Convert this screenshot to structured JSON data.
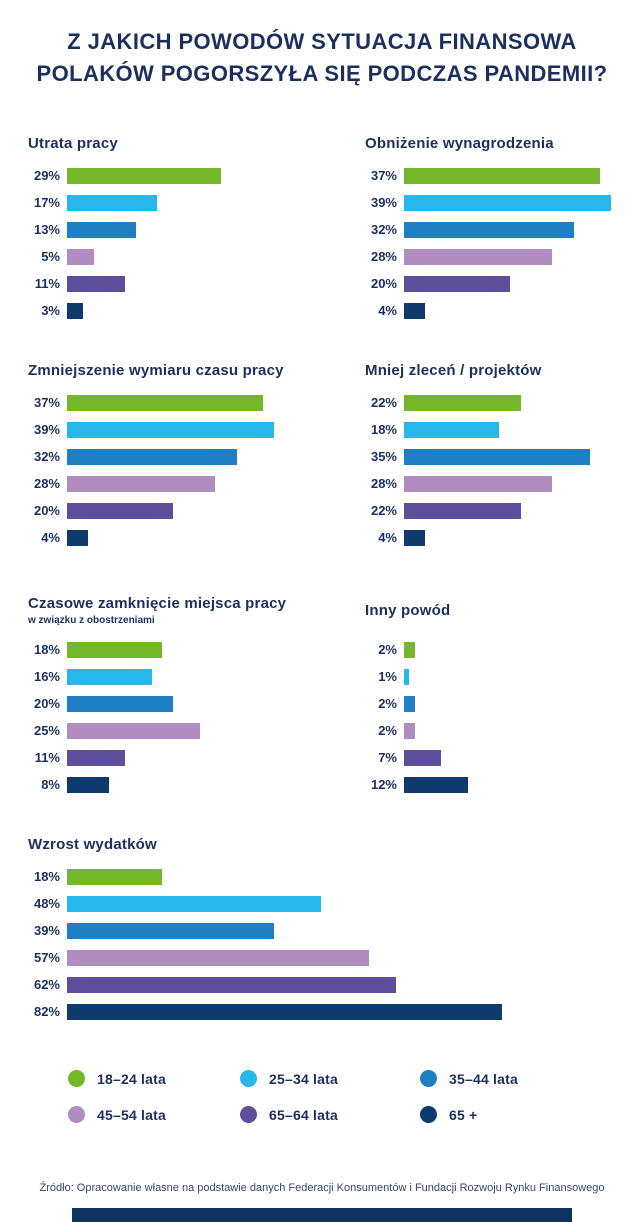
{
  "title": "Z JAKICH POWODÓW SYTUACJA FINANSOWA\nPOLAKÓW POGORSZYŁA SIĘ PODCZAS PANDEMII?",
  "colors": {
    "title": "#1d2f5e",
    "footer_strip": "#0d335f"
  },
  "legend": [
    {
      "label": "18–24 lata",
      "color": "#74b829"
    },
    {
      "label": "25–34 lata",
      "color": "#27b7ea"
    },
    {
      "label": "35–44 lata",
      "color": "#1e7fc2"
    },
    {
      "label": "45–54 lata",
      "color": "#b08cc1"
    },
    {
      "label": "65–64 lata",
      "color": "#5d4f9c"
    },
    {
      "label": "65 +",
      "color": "#0e3a6d"
    }
  ],
  "chart_layout": {
    "orientation": "horizontal",
    "grid": false,
    "legend_position": "bottom",
    "value_labels": "left",
    "unit": "%"
  },
  "chart_data": [
    {
      "type": "bar",
      "id": "utrata-pracy",
      "title": "Utrata pracy",
      "subtitle": "",
      "categories": [
        "18–24 lata",
        "25–34 lata",
        "35–44 lata",
        "45–54 lata",
        "65–64 lata",
        "65 +"
      ],
      "values": [
        29,
        17,
        13,
        5,
        11,
        3
      ],
      "unit": "%"
    },
    {
      "type": "bar",
      "id": "obnizenie-wynagrodzenia",
      "title": "Obniżenie wynagrodzenia",
      "subtitle": "",
      "categories": [
        "18–24 lata",
        "25–34 lata",
        "35–44 lata",
        "45–54 lata",
        "65–64 lata",
        "65 +"
      ],
      "values": [
        37,
        39,
        32,
        28,
        20,
        4
      ],
      "unit": "%"
    },
    {
      "type": "bar",
      "id": "zmniejszenie-wymiaru-czasu-pracy",
      "title": "Zmniejszenie wymiaru czasu pracy",
      "subtitle": "",
      "categories": [
        "18–24 lata",
        "25–34 lata",
        "35–44 lata",
        "45–54 lata",
        "65–64 lata",
        "65 +"
      ],
      "values": [
        37,
        39,
        32,
        28,
        20,
        4
      ],
      "unit": "%"
    },
    {
      "type": "bar",
      "id": "mniej-zlecen-projektow",
      "title": "Mniej zleceń / projektów",
      "subtitle": "",
      "categories": [
        "18–24 lata",
        "25–34 lata",
        "35–44 lata",
        "45–54 lata",
        "65–64 lata",
        "65 +"
      ],
      "values": [
        22,
        18,
        35,
        28,
        22,
        4
      ],
      "unit": "%"
    },
    {
      "type": "bar",
      "id": "czasowe-zamkniecie-miejsca-pracy",
      "title": "Czasowe zamknięcie miejsca pracy",
      "subtitle": "w związku z obostrzeniami",
      "categories": [
        "18–24 lata",
        "25–34 lata",
        "35–44 lata",
        "45–54 lata",
        "65–64 lata",
        "65 +"
      ],
      "values": [
        18,
        16,
        20,
        25,
        11,
        8
      ],
      "unit": "%"
    },
    {
      "type": "bar",
      "id": "inny-powod",
      "title": "Inny powód",
      "subtitle": "",
      "categories": [
        "18–24 lata",
        "25–34 lata",
        "35–44 lata",
        "45–54 lata",
        "65–64 lata",
        "65 +"
      ],
      "values": [
        2,
        1,
        2,
        2,
        7,
        12
      ],
      "unit": "%"
    },
    {
      "type": "bar",
      "id": "wzrost-wydatkow",
      "title": "Wzrost wydatków",
      "subtitle": "",
      "categories": [
        "18–24 lata",
        "25–34 lata",
        "35–44 lata",
        "45–54 lata",
        "65–64 lata",
        "65 +"
      ],
      "values": [
        18,
        48,
        39,
        57,
        62,
        82
      ],
      "unit": "%"
    }
  ],
  "source": "Źródło: Opracowanie własne na podstawie danych Federacji Konsumentów i Fundacji Rozwoju Rynku Finansowego"
}
